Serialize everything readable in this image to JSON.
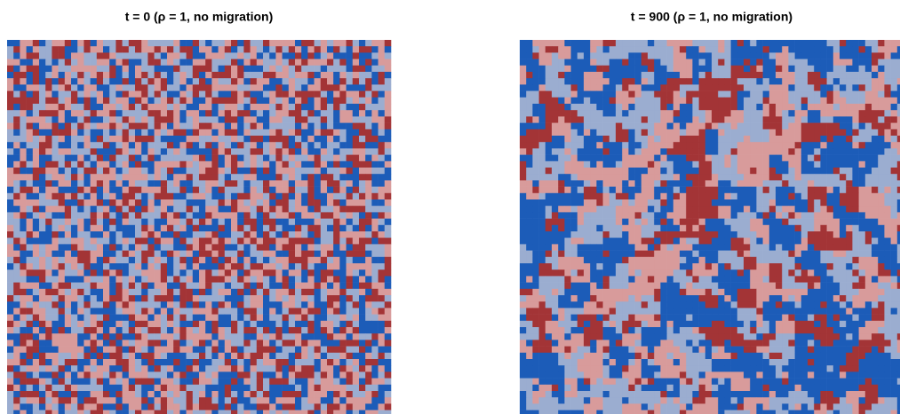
{
  "panels": [
    {
      "title": "t = 0 (ρ = 1, no migration)"
    },
    {
      "title": "t = 900 (ρ = 1, no migration)"
    }
  ],
  "state_colors": [
    "#1c5cb8",
    "#9badd0",
    "#d89b9b",
    "#a33436"
  ]
}
